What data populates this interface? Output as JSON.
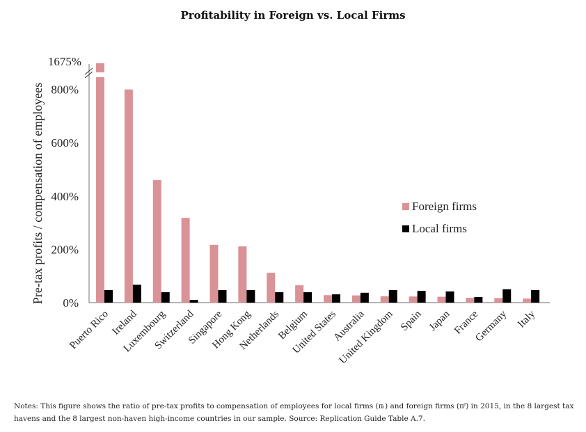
{
  "chart_data": {
    "type": "bar",
    "title": "Profitability in Foreign vs. Local Firms",
    "xlabel": "",
    "ylabel": "Pre-tax profits / compensation of employees",
    "ylim": [
      0,
      850
    ],
    "yticks": [
      0,
      200,
      400,
      600,
      800
    ],
    "ytick_labels": [
      "0%",
      "200%",
      "400%",
      "600%",
      "800%"
    ],
    "axis_break": {
      "label": "1675%",
      "value": 1675
    },
    "grid": false,
    "legend_position": "right",
    "categories": [
      "Puerto Rico",
      "Ireland",
      "Luxembourg",
      "Switzerland",
      "Singapore",
      "Hong Kong",
      "Netherlands",
      "Belgium",
      "United States",
      "Australia",
      "United Kingdom",
      "Spain",
      "Japan",
      "France",
      "Germany",
      "Italy"
    ],
    "series": [
      {
        "name": "Foreign firms",
        "color": "#d99397",
        "values": [
          1675,
          800,
          460,
          318,
          217,
          211,
          112,
          65,
          28,
          27,
          24,
          23,
          22,
          18,
          17,
          15
        ]
      },
      {
        "name": "Local firms",
        "color": "#000000",
        "values": [
          47,
          67,
          39,
          10,
          47,
          47,
          39,
          39,
          31,
          37,
          47,
          44,
          42,
          21,
          50,
          47
        ]
      }
    ]
  },
  "notes": "Notes: This figure shows the ratio of pre-tax profits to compensation of employees for local firms (πₗ) and foreign firms (πᶠ) in 2015, in the 8 largest tax havens and the 8 largest non-haven high-income countries in our sample. Source: Replication Guide Table A.7."
}
